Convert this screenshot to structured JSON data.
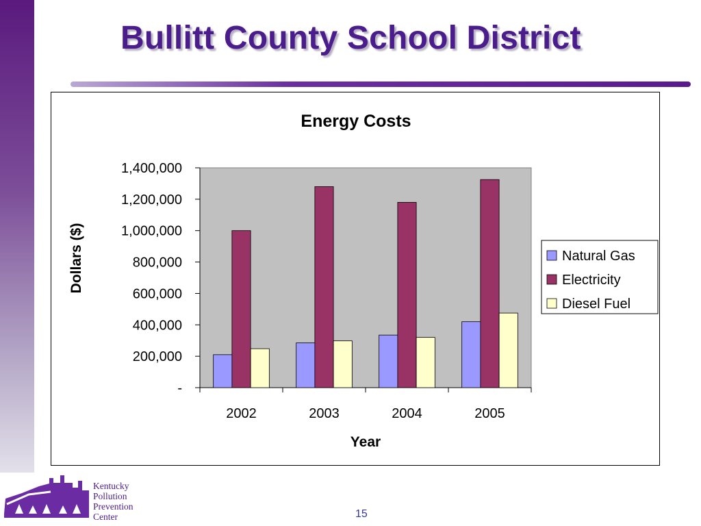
{
  "slide": {
    "title": "Bullitt County School District",
    "page_number": "15"
  },
  "logo": {
    "lines": [
      "Kentucky",
      "Pollution",
      "Prevention",
      "Center"
    ]
  },
  "colors": {
    "natural_gas": "#9999ff",
    "electricity": "#993366",
    "diesel_fuel": "#ffffcc",
    "plot_area": "#c0c0c0",
    "accent": "#4b1c8c"
  },
  "chart_data": {
    "type": "bar",
    "title": "Energy Costs",
    "xlabel": "Year",
    "ylabel": "Dollars ($)",
    "categories": [
      "2002",
      "2003",
      "2004",
      "2005"
    ],
    "series": [
      {
        "name": "Natural Gas",
        "values": [
          210000,
          285000,
          335000,
          420000
        ]
      },
      {
        "name": "Electricity",
        "values": [
          1000000,
          1280000,
          1180000,
          1325000
        ]
      },
      {
        "name": "Diesel Fuel",
        "values": [
          248000,
          298000,
          320000,
          475000
        ]
      }
    ],
    "ylim": [
      0,
      1400000
    ],
    "yticks": [
      0,
      200000,
      400000,
      600000,
      800000,
      1000000,
      1200000,
      1400000
    ],
    "ytick_labels": [
      "-",
      "200,000",
      "400,000",
      "600,000",
      "800,000",
      "1,000,000",
      "1,200,000",
      "1,400,000"
    ],
    "legend_position": "right",
    "grid": false
  }
}
